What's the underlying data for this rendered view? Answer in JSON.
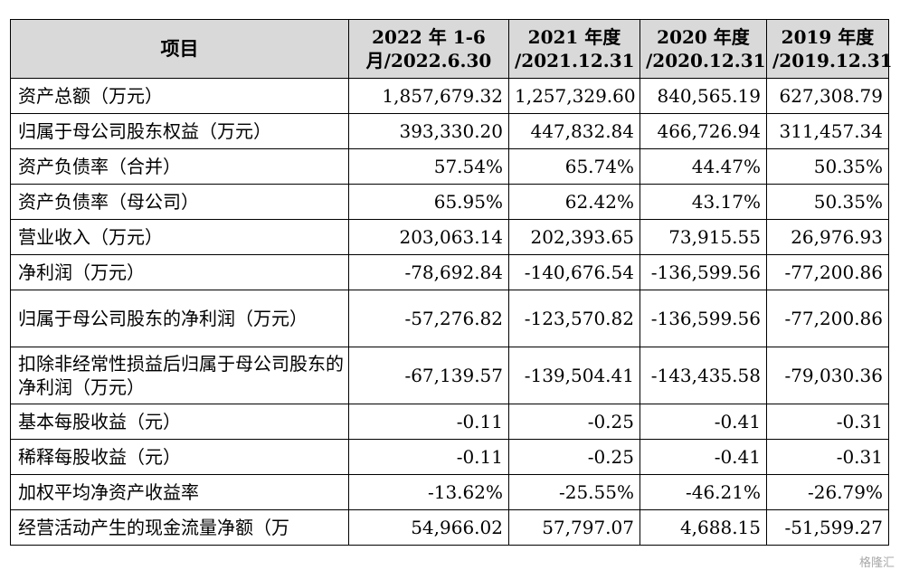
{
  "table": {
    "headers": {
      "item": "项目",
      "col1": [
        "2022 年 1-6",
        "月/2022.6.30"
      ],
      "col2": [
        "2021 年度",
        "/2021.12.31"
      ],
      "col3": [
        "2020 年度",
        "/2020.12.31"
      ],
      "col4": [
        "2019 年度",
        "/2019.12.31"
      ]
    },
    "rows": [
      {
        "label": "资产总额（万元）",
        "values": [
          "1,857,679.32",
          "1,257,329.60",
          "840,565.19",
          "627,308.79"
        ]
      },
      {
        "label": "归属于母公司股东权益（万元）",
        "values": [
          "393,330.20",
          "447,832.84",
          "466,726.94",
          "311,457.34"
        ]
      },
      {
        "label": "资产负债率（合并）",
        "values": [
          "57.54%",
          "65.74%",
          "44.47%",
          "50.35%"
        ]
      },
      {
        "label": "资产负债率（母公司）",
        "values": [
          "65.95%",
          "62.42%",
          "43.17%",
          "50.35%"
        ]
      },
      {
        "label": "营业收入（万元）",
        "values": [
          "203,063.14",
          "202,393.65",
          "73,915.55",
          "26,976.93"
        ]
      },
      {
        "label": "净利润（万元）",
        "values": [
          "-78,692.84",
          "-140,676.54",
          "-136,599.56",
          "-77,200.86"
        ]
      },
      {
        "label": "归属于母公司股东的净利润（万元）",
        "values": [
          "-57,276.82",
          "-123,570.82",
          "-136,599.56",
          "-77,200.86"
        ]
      },
      {
        "label": "扣除非经常性损益后归属于母公司股东的净利润（万元）",
        "values": [
          "-67,139.57",
          "-139,504.41",
          "-143,435.58",
          "-79,030.36"
        ]
      },
      {
        "label": "基本每股收益（元）",
        "values": [
          "-0.11",
          "-0.25",
          "-0.41",
          "-0.31"
        ]
      },
      {
        "label": "稀释每股收益（元）",
        "values": [
          "-0.11",
          "-0.25",
          "-0.41",
          "-0.31"
        ]
      },
      {
        "label": "加权平均净资产收益率",
        "values": [
          "-13.62%",
          "-25.55%",
          "-46.21%",
          "-26.79%"
        ]
      },
      {
        "label": "经营活动产生的现金流量净额（万",
        "values": [
          "54,966.02",
          "57,797.07",
          "4,688.15",
          "-51,599.27"
        ]
      }
    ]
  },
  "watermark": "格隆汇"
}
